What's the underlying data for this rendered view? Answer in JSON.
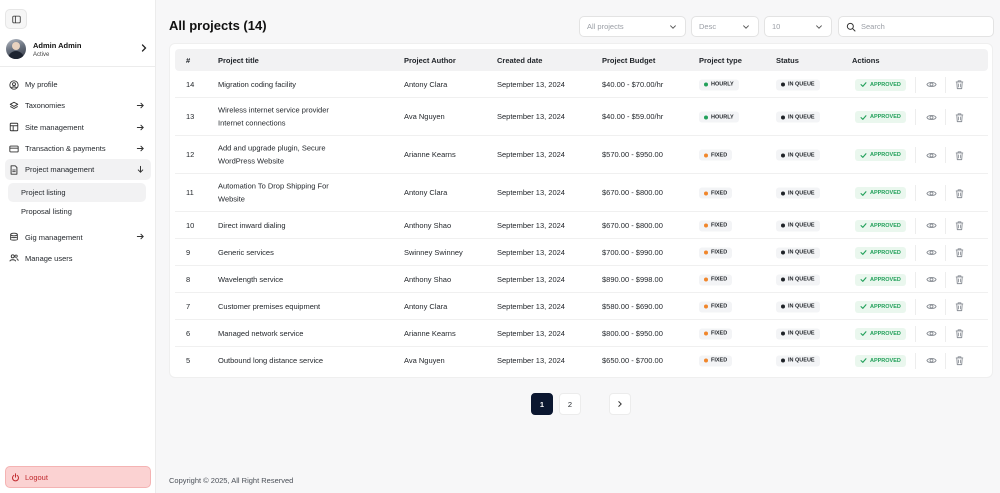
{
  "sidebar": {
    "user": {
      "name": "Admin Admin",
      "status": "Active"
    },
    "items": [
      {
        "label": "My profile",
        "icon": "user-circle-icon",
        "arrow": false,
        "active": false
      },
      {
        "label": "Taxonomies",
        "icon": "layers-icon",
        "arrow": "right",
        "active": false
      },
      {
        "label": "Site management",
        "icon": "layout-icon",
        "arrow": "right",
        "active": false
      },
      {
        "label": "Transaction & payments",
        "icon": "credit-card-icon",
        "arrow": "right",
        "active": false
      },
      {
        "label": "Project management",
        "icon": "document-icon",
        "arrow": "down",
        "active": true
      }
    ],
    "subitems": [
      {
        "label": "Project listing",
        "active": true
      },
      {
        "label": "Proposal listing",
        "active": false
      }
    ],
    "items_after": [
      {
        "label": "Gig management",
        "icon": "database-icon",
        "arrow": "right"
      },
      {
        "label": "Manage users",
        "icon": "users-icon",
        "arrow": false
      }
    ],
    "logout_label": "Logout"
  },
  "header": {
    "title": "All projects (14)",
    "filter_projects": "All projects",
    "filter_order": "Desc",
    "filter_per_page": "10",
    "search_placeholder": "Search"
  },
  "table": {
    "columns": [
      "#",
      "Project title",
      "Project Author",
      "Created date",
      "Project Budget",
      "Project type",
      "Status",
      "Actions"
    ],
    "rows": [
      {
        "id": "14",
        "title": [
          "Migration coding facility"
        ],
        "author": "Antony Clara",
        "date": "September 13, 2024",
        "budget": "$40.00 - $70.00/hr",
        "type": "HOURLY",
        "status": "IN QUEUE",
        "approval": "APPROVED"
      },
      {
        "id": "13",
        "title": [
          "Wireless internet service provider",
          "Internet connections"
        ],
        "author": "Ava Nguyen",
        "date": "September 13, 2024",
        "budget": "$40.00 - $59.00/hr",
        "type": "HOURLY",
        "status": "IN QUEUE",
        "approval": "APPROVED"
      },
      {
        "id": "12",
        "title": [
          "Add and upgrade plugin, Secure",
          "WordPress Website"
        ],
        "author": "Arianne Kearns",
        "date": "September 13, 2024",
        "budget": "$570.00 - $950.00",
        "type": "FIXED",
        "status": "IN QUEUE",
        "approval": "APPROVED"
      },
      {
        "id": "11",
        "title": [
          "Automation To Drop Shipping For",
          "Website"
        ],
        "author": "Antony Clara",
        "date": "September 13, 2024",
        "budget": "$670.00 - $800.00",
        "type": "FIXED",
        "status": "IN QUEUE",
        "approval": "APPROVED"
      },
      {
        "id": "10",
        "title": [
          "Direct inward dialing"
        ],
        "author": "Anthony Shao",
        "date": "September 13, 2024",
        "budget": "$670.00 - $800.00",
        "type": "FIXED",
        "status": "IN QUEUE",
        "approval": "APPROVED"
      },
      {
        "id": "9",
        "title": [
          "Generic services"
        ],
        "author": "Swinney Swinney",
        "date": "September 13, 2024",
        "budget": "$700.00 - $990.00",
        "type": "FIXED",
        "status": "IN QUEUE",
        "approval": "APPROVED"
      },
      {
        "id": "8",
        "title": [
          "Wavelength service"
        ],
        "author": "Anthony Shao",
        "date": "September 13, 2024",
        "budget": "$890.00 - $998.00",
        "type": "FIXED",
        "status": "IN QUEUE",
        "approval": "APPROVED"
      },
      {
        "id": "7",
        "title": [
          "Customer premises equipment"
        ],
        "author": "Antony Clara",
        "date": "September 13, 2024",
        "budget": "$580.00 - $690.00",
        "type": "FIXED",
        "status": "IN QUEUE",
        "approval": "APPROVED"
      },
      {
        "id": "6",
        "title": [
          "Managed network service"
        ],
        "author": "Arianne Kearns",
        "date": "September 13, 2024",
        "budget": "$800.00 - $950.00",
        "type": "FIXED",
        "status": "IN QUEUE",
        "approval": "APPROVED"
      },
      {
        "id": "5",
        "title": [
          "Outbound long distance service"
        ],
        "author": "Ava Nguyen",
        "date": "September 13, 2024",
        "budget": "$650.00 - $700.00",
        "type": "FIXED",
        "status": "IN QUEUE",
        "approval": "APPROVED"
      }
    ]
  },
  "pagination": {
    "pages": [
      "1",
      "2"
    ],
    "current": "1"
  },
  "footer": {
    "copyright": "Copyright © 2025, All Right Reserved"
  },
  "colors": {
    "hourly_dot": "#22a05a",
    "fixed_dot": "#f0862b",
    "queue_dot": "#1f2328",
    "approved_text": "#22a05a",
    "approved_bg": "#eaf7ee",
    "logout_bg": "#fbd2d2",
    "logout_text": "#c0282d",
    "page_active_bg": "#0b1730"
  }
}
